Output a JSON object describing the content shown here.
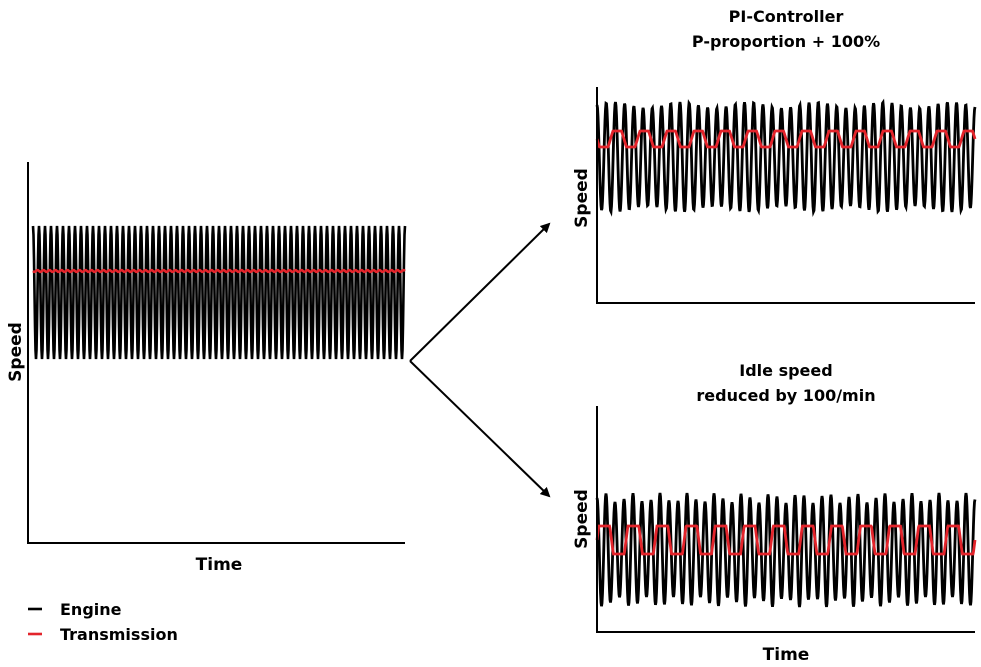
{
  "colors": {
    "engine": "#000000",
    "transmission": "#e3242b"
  },
  "legend": {
    "engine_label": "Engine",
    "transmission_label": "Transmission"
  },
  "panels": {
    "baseline": {
      "ylabel": "Speed",
      "xlabel": "Time"
    },
    "pi_controller": {
      "title_line1": "PI-Controller",
      "title_line2": "P-proportion + 100%",
      "ylabel": "Speed"
    },
    "idle_speed": {
      "title_line1": "Idle speed",
      "title_line2": "reduced by 100/min",
      "ylabel": "Speed",
      "xlabel": "Time"
    }
  }
}
